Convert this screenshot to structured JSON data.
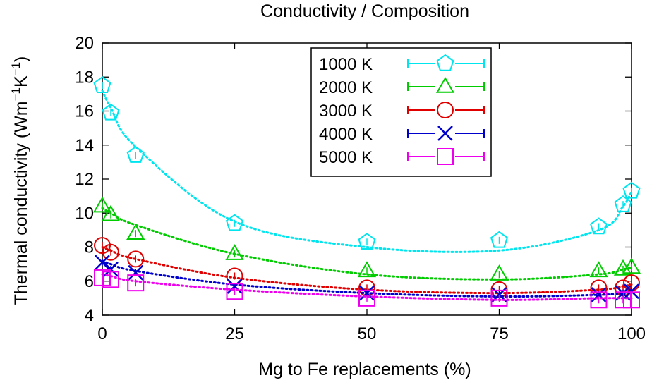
{
  "chart_data": {
    "type": "scatter",
    "title": "Conductivity / Composition",
    "xlabel": "Mg to Fe replacements (%)",
    "ylabel_main": "Thermal conductivity (Wm",
    "ylabel_sup1": "−1",
    "ylabel_mid": "K",
    "ylabel_sup2": "−1",
    "ylabel_end": ")",
    "xlim": [
      0,
      100
    ],
    "ylim": [
      4,
      20
    ],
    "xticks": [
      "0",
      "25",
      "50",
      "75",
      "100"
    ],
    "yticks": [
      "4",
      "6",
      "8",
      "10",
      "12",
      "14",
      "16",
      "18",
      "20"
    ],
    "legend_position": "top-center",
    "series": [
      {
        "name": "1000 K",
        "color": "#00e5ee",
        "marker": "pentagon",
        "x": [
          0,
          1.6,
          6.3,
          25,
          50,
          75,
          93.8,
          98.4,
          100
        ],
        "y": [
          17.5,
          15.9,
          13.4,
          9.4,
          8.3,
          8.4,
          9.2,
          10.5,
          11.3
        ],
        "fit": [
          17.2,
          16.2,
          13.9,
          9.5,
          8.0,
          7.8,
          9.0,
          10.4,
          11.3
        ]
      },
      {
        "name": "2000 K",
        "color": "#00cc00",
        "marker": "triangle",
        "x": [
          0,
          1.6,
          6.3,
          25,
          50,
          75,
          93.8,
          98.4,
          100
        ],
        "y": [
          10.4,
          9.9,
          8.8,
          7.6,
          6.6,
          6.4,
          6.6,
          6.7,
          6.8
        ],
        "fit": [
          10.3,
          10.0,
          9.3,
          7.6,
          6.4,
          6.1,
          6.4,
          6.7,
          6.8
        ]
      },
      {
        "name": "3000 K",
        "color": "#e00000",
        "marker": "circle",
        "x": [
          0,
          1.6,
          6.3,
          25,
          50,
          75,
          93.8,
          98.4,
          100
        ],
        "y": [
          8.1,
          7.7,
          7.3,
          6.3,
          5.6,
          5.5,
          5.6,
          5.6,
          5.9
        ],
        "fit": [
          8.0,
          7.8,
          7.3,
          6.2,
          5.5,
          5.3,
          5.5,
          5.7,
          5.8
        ]
      },
      {
        "name": "4000 K",
        "color": "#0000cc",
        "marker": "cross",
        "x": [
          0,
          1.6,
          6.3,
          25,
          50,
          75,
          93.8,
          98.4,
          100
        ],
        "y": [
          7.1,
          6.7,
          6.5,
          5.7,
          5.3,
          5.2,
          5.2,
          5.3,
          5.4
        ],
        "fit": [
          7.2,
          7.0,
          6.6,
          5.8,
          5.3,
          5.1,
          5.2,
          5.3,
          5.4
        ]
      },
      {
        "name": "5000 K",
        "color": "#ee00ee",
        "marker": "square",
        "x": [
          0,
          1.6,
          6.3,
          25,
          50,
          75,
          93.8,
          98.4,
          100
        ],
        "y": [
          6.2,
          6.1,
          5.9,
          5.4,
          5.0,
          5.0,
          4.9,
          4.9,
          4.9
        ],
        "fit": [
          6.4,
          6.3,
          6.0,
          5.5,
          5.1,
          4.9,
          5.0,
          5.0,
          5.0
        ]
      }
    ]
  }
}
